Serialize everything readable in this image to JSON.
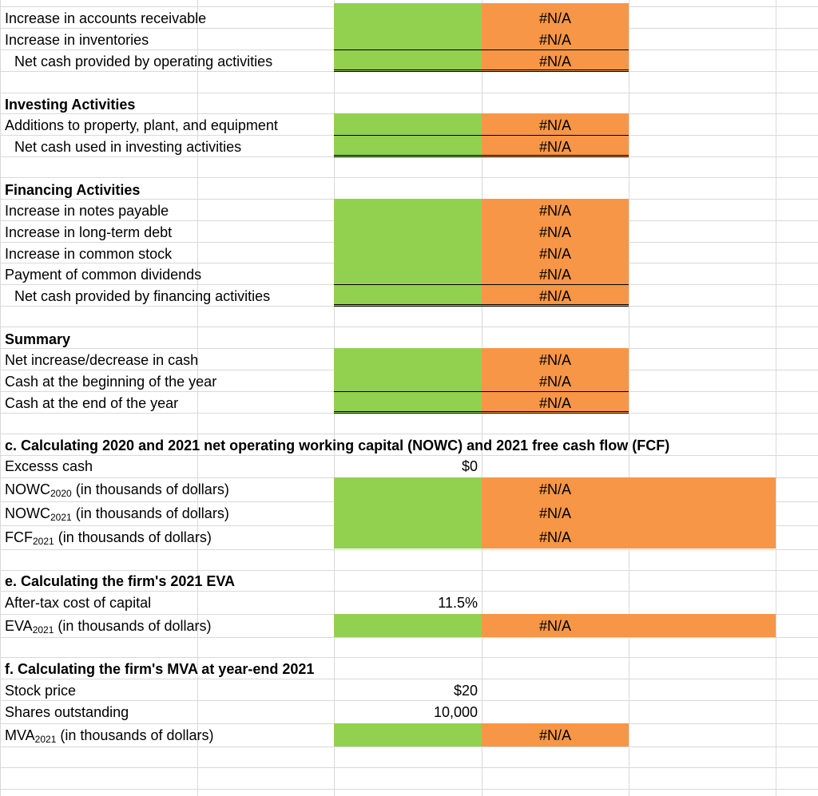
{
  "colors": {
    "input_green": "#92d050",
    "output_orange": "#f79646",
    "gridline": "#d9d9d9"
  },
  "na": "#N/A",
  "operating": {
    "increase_ar": "Increase in accounts receivable",
    "increase_inv": "Increase in inventories",
    "net_cash_operating": "Net cash provided by operating activities"
  },
  "investing": {
    "header": "Investing Activities",
    "additions_ppe": "Additions to property, plant, and equipment",
    "net_cash_investing": "Net cash used in investing activities"
  },
  "financing": {
    "header": "Financing Activities",
    "notes_payable": "Increase in notes payable",
    "long_term_debt": "Increase in long-term debt",
    "common_stock": "Increase in common stock",
    "dividends": "Payment of common dividends",
    "net_cash_financing": "Net cash provided by financing activities"
  },
  "summary": {
    "header": "Summary",
    "net_change": "Net increase/decrease in cash",
    "cash_begin": "Cash at the beginning of the year",
    "cash_end": "Cash at the end of the year"
  },
  "section_c": {
    "header": "c.  Calculating 2020 and 2021 net operating working capital (NOWC) and 2021 free cash flow (FCF)",
    "excess_cash_label": "Excesss cash",
    "excess_cash_value": "$0",
    "nowc2020": {
      "base": "NOWC",
      "sub": "2020",
      "rest": " (in thousands of dollars)"
    },
    "nowc2021": {
      "base": "NOWC",
      "sub": "2021",
      "rest": " (in thousands of dollars)"
    },
    "fcf2021": {
      "base": "FCF",
      "sub": "2021",
      "rest": " (in thousands of dollars)"
    }
  },
  "section_e": {
    "header": "e.  Calculating the firm's 2021 EVA",
    "cost_capital_label": "After-tax cost of capital",
    "cost_capital_value": "11.5%",
    "eva2021": {
      "base": "EVA",
      "sub": "2021",
      "rest": " (in thousands of dollars)"
    }
  },
  "section_f": {
    "header": "f.  Calculating the firm's MVA at year-end 2021",
    "stock_price_label": "Stock price",
    "stock_price_value": "$20",
    "shares_label": "Shares outstanding",
    "shares_value": "10,000",
    "mva2021": {
      "base": "MVA",
      "sub": "2021",
      "rest": " (in thousands of dollars)"
    }
  }
}
